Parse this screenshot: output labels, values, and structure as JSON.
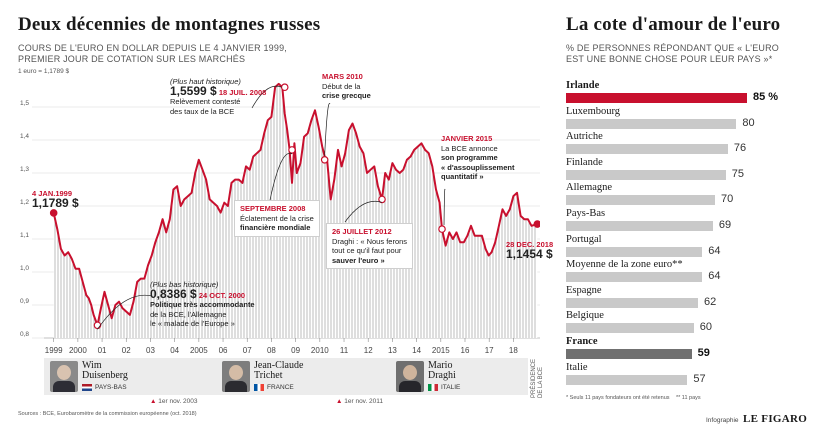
{
  "left": {
    "title": "Deux décennies de montagnes russes",
    "subtitle_line1": "COURS DE L'EURO EN DOLLAR DEPUIS LE 4 JANVIER 1999,",
    "subtitle_line2": "PREMIER JOUR DE COTATION SUR LES MARCHÉS",
    "reference": "1 euro = 1,1789 $",
    "annotations": {
      "start_date": "4 JAN.1999",
      "start_value": "1,1789 $",
      "high_label": "(Plus haut historique)",
      "high_value": "1,5599 $",
      "high_date": "18 JUIL. 2008",
      "high_line1": "Relèvement contesté",
      "high_line2": "des taux de la BCE",
      "low_label": "(Plus bas historique)",
      "low_value": "0,8386 $",
      "low_date": "24 OCT. 2000",
      "low_line1": "Politique très accommodante",
      "low_line2": "de la BCE, l'Allemagne",
      "low_line3": "le « malade de l'Europe »",
      "m2010_date": "MARS 2010",
      "m2010_line1": "Début de la",
      "m2010_line2": "crise grecque",
      "s2008_date": "SEPTEMBRE 2008",
      "s2008_line1": "Éclatement de la crise",
      "s2008_line2": "financière mondiale",
      "j2012_date": "26 JUILLET 2012",
      "j2012_line1": "Draghi : « Nous ferons",
      "j2012_line2": "tout ce qu'il faut pour",
      "j2012_line3": "sauver l'euro »",
      "j2015_date": "JANVIER 2015",
      "j2015_line1": "La BCE annonce",
      "j2015_line2": "son programme",
      "j2015_line3": "« d'assouplissement",
      "j2015_line4": "quantitatif »",
      "end_date": "28 DEC. 2018",
      "end_value": "1,1454 $"
    },
    "presidents": [
      {
        "name_line1": "Wim",
        "name_line2": "Duisenberg",
        "country": "PAYS-BAS"
      },
      {
        "name_line1": "Jean-Claude",
        "name_line2": "Trichet",
        "country": "FRANCE"
      },
      {
        "name_line1": "Mario",
        "name_line2": "Draghi",
        "country": "ITALIE"
      }
    ],
    "presidency_label": "PRÉSIDENCE DE LA BCE",
    "trichet_start": "1er nov. 2003",
    "draghi_start": "1er nov. 2011",
    "source": "Sources : BCE, Eurobaromètre de la commission européenne (oct. 2018)"
  },
  "right": {
    "title": "La cote d'amour de l'euro",
    "subtitle_line1": "% DE PERSONNES RÉPONDANT QUE « L'EURO",
    "subtitle_line2": "EST UNE BONNE CHOSE POUR LEUR PAYS »*",
    "footnote1": "* Seuls 11 pays fondateurs ont été retenus",
    "footnote2": "** 11 pays",
    "credit_prefix": "Infographie",
    "credit_brand": "LE FIGARO"
  },
  "chart_data": [
    {
      "type": "line",
      "title": "Deux décennies de montagnes russes",
      "ylim": [
        0.8,
        1.6
      ],
      "y_ticks": [
        "0.8",
        "0.9",
        "1.0",
        "1.1",
        "1.2",
        "1.3",
        "1.4",
        "1.5"
      ],
      "x_tick_labels": [
        "1999",
        "2000",
        "01",
        "02",
        "03",
        "04",
        "2005",
        "06",
        "07",
        "08",
        "09",
        "2010",
        "11",
        "12",
        "13",
        "14",
        "2015",
        "16",
        "17",
        "18"
      ],
      "x_tick_years": [
        1999,
        2000,
        2001,
        2002,
        2003,
        2004,
        2005,
        2006,
        2007,
        2008,
        2009,
        2010,
        2011,
        2012,
        2013,
        2014,
        2015,
        2016,
        2017,
        2018
      ],
      "xlim": [
        1998.6,
        2019.1
      ],
      "grid": true,
      "colors": {
        "line": "#c8102e",
        "area": "#bdbdbd"
      },
      "series": [
        {
          "name": "",
          "x": [
            1999.0,
            1999.15,
            1999.3,
            1999.45,
            1999.6,
            1999.75,
            1999.9,
            2000.05,
            2000.2,
            2000.35,
            2000.45,
            2000.55,
            2000.65,
            2000.81,
            2000.95,
            2001.1,
            2001.25,
            2001.4,
            2001.55,
            2001.7,
            2001.85,
            2002.0,
            2002.15,
            2002.3,
            2002.45,
            2002.6,
            2002.75,
            2002.9,
            2003.05,
            2003.2,
            2003.35,
            2003.5,
            2003.65,
            2003.8,
            2003.95,
            2004.1,
            2004.25,
            2004.4,
            2004.55,
            2004.7,
            2004.85,
            2005.0,
            2005.15,
            2005.3,
            2005.45,
            2005.6,
            2005.75,
            2005.9,
            2006.05,
            2006.2,
            2006.35,
            2006.5,
            2006.65,
            2006.8,
            2006.95,
            2007.1,
            2007.25,
            2007.4,
            2007.55,
            2007.7,
            2007.85,
            2008.0,
            2008.15,
            2008.3,
            2008.45,
            2008.55,
            2008.65,
            2008.75,
            2008.85,
            2008.95,
            2009.05,
            2009.2,
            2009.35,
            2009.5,
            2009.65,
            2009.8,
            2009.95,
            2010.1,
            2010.2,
            2010.3,
            2010.45,
            2010.6,
            2010.75,
            2010.9,
            2011.05,
            2011.2,
            2011.35,
            2011.5,
            2011.65,
            2011.8,
            2011.95,
            2012.1,
            2012.25,
            2012.4,
            2012.57,
            2012.7,
            2012.85,
            2013.0,
            2013.15,
            2013.3,
            2013.45,
            2013.6,
            2013.75,
            2013.9,
            2014.05,
            2014.2,
            2014.35,
            2014.5,
            2014.65,
            2014.8,
            2014.95,
            2015.05,
            2015.2,
            2015.35,
            2015.5,
            2015.65,
            2015.8,
            2015.95,
            2016.1,
            2016.25,
            2016.4,
            2016.55,
            2016.7,
            2016.85,
            2016.98,
            2017.1,
            2017.25,
            2017.4,
            2017.55,
            2017.7,
            2017.85,
            2018.0,
            2018.15,
            2018.3,
            2018.45,
            2018.6,
            2018.75,
            2018.99
          ],
          "y": [
            1.1789,
            1.13,
            1.07,
            1.05,
            1.06,
            1.04,
            1.01,
            1.01,
            0.97,
            0.93,
            0.92,
            0.9,
            0.87,
            0.8386,
            0.89,
            0.94,
            0.9,
            0.86,
            0.9,
            0.91,
            0.89,
            0.88,
            0.87,
            0.91,
            0.97,
            0.98,
            0.98,
            1.02,
            1.05,
            1.09,
            1.12,
            1.16,
            1.12,
            1.16,
            1.25,
            1.26,
            1.2,
            1.22,
            1.23,
            1.24,
            1.3,
            1.34,
            1.31,
            1.28,
            1.22,
            1.21,
            1.2,
            1.18,
            1.21,
            1.2,
            1.27,
            1.28,
            1.28,
            1.27,
            1.32,
            1.31,
            1.35,
            1.36,
            1.37,
            1.42,
            1.46,
            1.47,
            1.56,
            1.57,
            1.5599,
            1.48,
            1.43,
            1.37,
            1.27,
            1.39,
            1.3,
            1.33,
            1.41,
            1.42,
            1.46,
            1.49,
            1.44,
            1.38,
            1.35,
            1.34,
            1.22,
            1.28,
            1.37,
            1.32,
            1.36,
            1.43,
            1.45,
            1.42,
            1.38,
            1.36,
            1.3,
            1.31,
            1.32,
            1.26,
            1.22,
            1.3,
            1.28,
            1.33,
            1.31,
            1.3,
            1.31,
            1.34,
            1.35,
            1.37,
            1.38,
            1.39,
            1.37,
            1.36,
            1.32,
            1.25,
            1.21,
            1.13,
            1.08,
            1.12,
            1.1,
            1.12,
            1.09,
            1.09,
            1.11,
            1.14,
            1.11,
            1.11,
            1.11,
            1.07,
            1.05,
            1.06,
            1.09,
            1.14,
            1.19,
            1.17,
            1.19,
            1.23,
            1.24,
            1.17,
            1.16,
            1.16,
            1.14,
            1.1454
          ]
        }
      ]
    },
    {
      "type": "bar",
      "orientation": "horizontal",
      "title": "La cote d'amour de l'euro",
      "categories": [
        "Irlande",
        "Luxembourg",
        "Autriche",
        "Finlande",
        "Allemagne",
        "Pays-Bas",
        "Portugal",
        "Moyenne de la zone euro**",
        "Espagne",
        "Belgique",
        "France",
        "Italie"
      ],
      "values": [
        85,
        80,
        76,
        75,
        70,
        69,
        64,
        64,
        62,
        60,
        59,
        57
      ],
      "value_labels": [
        "85 %",
        "80",
        "76",
        "75",
        "70",
        "69",
        "64",
        "64",
        "62",
        "60",
        "59",
        "57"
      ],
      "highlight": {
        "Irlande": "#c8102e",
        "France": "#707070"
      },
      "default_color": "#c9c9c9",
      "xlim": [
        0,
        85
      ]
    }
  ]
}
